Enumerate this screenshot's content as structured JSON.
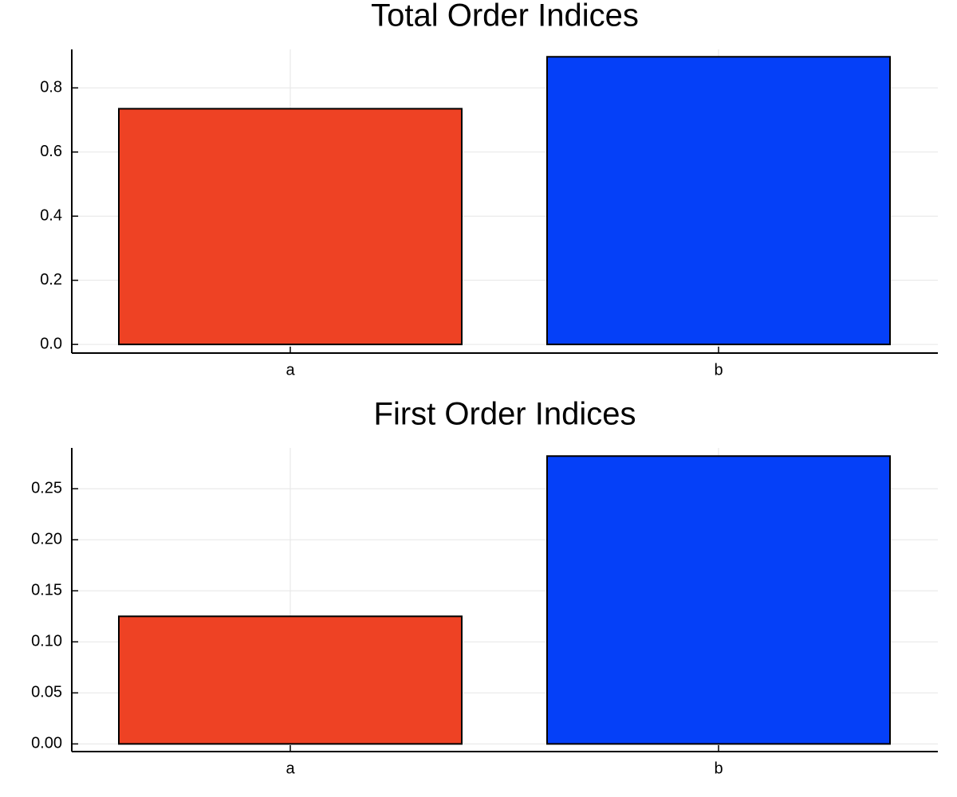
{
  "chart_data": [
    {
      "type": "bar",
      "title": "Total Order Indices",
      "categories": [
        "a",
        "b"
      ],
      "values": [
        0.735,
        0.897
      ],
      "colors": [
        "#ee4224",
        "#0540f8"
      ],
      "ylim": [
        -0.027,
        0.92
      ],
      "yticks": [
        0.0,
        0.2,
        0.4,
        0.6,
        0.8
      ],
      "ytick_labels": [
        "0.0",
        "0.2",
        "0.4",
        "0.6",
        "0.8"
      ],
      "xlabel": "",
      "ylabel": "",
      "grid": true,
      "legend": "none"
    },
    {
      "type": "bar",
      "title": "First Order Indices",
      "categories": [
        "a",
        "b"
      ],
      "values": [
        0.125,
        0.282
      ],
      "colors": [
        "#ee4224",
        "#0540f8"
      ],
      "ylim": [
        -0.0075,
        0.29
      ],
      "yticks": [
        0.0,
        0.05,
        0.1,
        0.15,
        0.2,
        0.25
      ],
      "ytick_labels": [
        "0.00",
        "0.05",
        "0.10",
        "0.15",
        "0.20",
        "0.25"
      ],
      "xlabel": "",
      "ylabel": "",
      "grid": true,
      "legend": "none"
    }
  ]
}
